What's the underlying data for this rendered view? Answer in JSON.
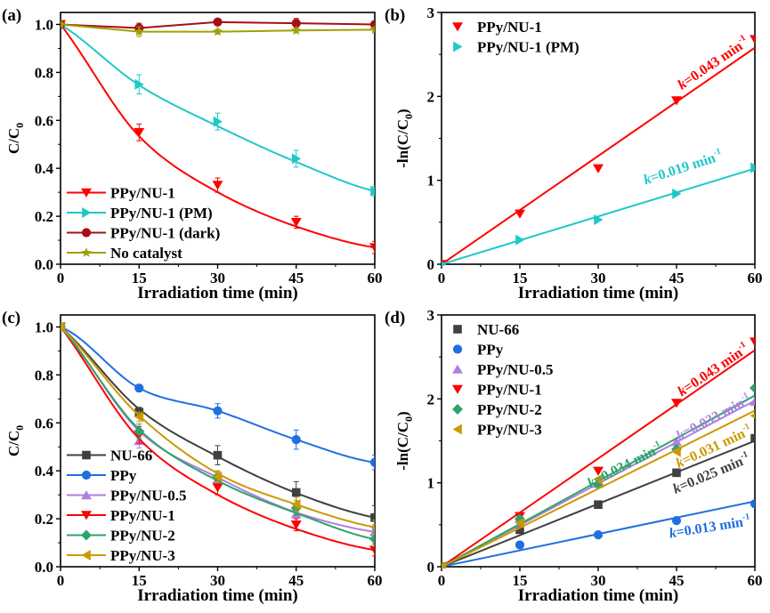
{
  "chart_data": [
    {
      "id": "a",
      "panel_label": "(a)",
      "type": "line",
      "xlabel": "Irradiation time (min)",
      "ylabel": "C/C",
      "ylabel_sub": "0",
      "xlim": [
        0,
        60
      ],
      "ylim": [
        0,
        1.05
      ],
      "xticks": [
        0,
        15,
        30,
        45,
        60
      ],
      "xtick_labels": [
        "0",
        "15",
        "30",
        "45",
        "60"
      ],
      "yticks": [
        0,
        0.2,
        0.4,
        0.6,
        0.8,
        1.0
      ],
      "ytick_labels": [
        "0.0",
        "0.2",
        "0.4",
        "0.6",
        "0.8",
        "1.0"
      ],
      "grid": false,
      "legend_position": "bottom-left",
      "legend_style": "line-marker",
      "x": [
        0,
        15,
        30,
        45,
        60
      ],
      "series": [
        {
          "name": "PPy/NU-1",
          "color": "#ff0000",
          "marker": "triangle-down",
          "values": [
            1.0,
            0.55,
            0.33,
            0.175,
            0.07
          ],
          "errors": [
            0.01,
            0.035,
            0.03,
            0.025,
            0.025
          ],
          "fit": "exp",
          "fit_k": 0.043
        },
        {
          "name": "PPy/NU-1 (PM)",
          "color": "#1ec8c8",
          "marker": "triangle-right",
          "values": [
            1.0,
            0.75,
            0.595,
            0.44,
            0.305
          ],
          "errors": [
            0.01,
            0.04,
            0.035,
            0.035,
            0.02
          ],
          "fit": "exp",
          "fit_k": 0.019
        },
        {
          "name": "PPy/NU-1 (dark)",
          "color": "#a50f15",
          "marker": "circle",
          "values": [
            1.0,
            0.985,
            1.01,
            1.005,
            1.0
          ],
          "errors": [
            0.01,
            0.02,
            0.01,
            0.02,
            0.01
          ],
          "fit": "linear"
        },
        {
          "name": "No catalyst",
          "color": "#a0a000",
          "marker": "star",
          "values": [
            1.0,
            0.97,
            0.97,
            0.975,
            0.978
          ],
          "errors": [
            0.01,
            0.02,
            0.01,
            0.01,
            0.01
          ],
          "fit": "linear"
        }
      ]
    },
    {
      "id": "b",
      "panel_label": "(b)",
      "type": "scatter",
      "xlabel": "Irradiation time (min)",
      "ylabel": "-ln(C/C",
      "ylabel_sub": "0",
      "ylabel_tail": ")",
      "xlim": [
        0,
        60
      ],
      "ylim": [
        0,
        3
      ],
      "xticks": [
        0,
        15,
        30,
        45,
        60
      ],
      "xtick_labels": [
        "0",
        "15",
        "30",
        "45",
        "60"
      ],
      "yticks": [
        0,
        1,
        2,
        3
      ],
      "ytick_labels": [
        "0",
        "1",
        "2",
        "3"
      ],
      "grid": false,
      "legend_position": "top-left",
      "legend_style": "marker-only",
      "x": [
        0,
        15,
        30,
        45,
        60
      ],
      "series": [
        {
          "name": "PPy/NU-1",
          "color": "#ff0000",
          "marker": "triangle-down",
          "values": [
            0.0,
            0.6,
            1.14,
            1.95,
            2.68
          ],
          "fit_k": 0.043,
          "annotation": {
            "k": "k",
            "text": "=0.043 min",
            "sup": "-1",
            "x": 52.5,
            "y": 2.35,
            "angle": -34
          }
        },
        {
          "name": "PPy/NU-1 (PM)",
          "color": "#1ec8c8",
          "marker": "triangle-right",
          "values": [
            0.0,
            0.29,
            0.53,
            0.84,
            1.15
          ],
          "fit_k": 0.019,
          "annotation": {
            "k": "k",
            "text": "=0.019 min",
            "sup": "-1",
            "x": 46.5,
            "y": 1.1,
            "angle": -18
          }
        }
      ]
    },
    {
      "id": "c",
      "panel_label": "(c)",
      "type": "line",
      "xlabel": "Irradiation time (min)",
      "ylabel": "C/C",
      "ylabel_sub": "0",
      "xlim": [
        0,
        60
      ],
      "ylim": [
        0,
        1.05
      ],
      "xticks": [
        0,
        15,
        30,
        45,
        60
      ],
      "xtick_labels": [
        "0",
        "15",
        "30",
        "45",
        "60"
      ],
      "yticks": [
        0,
        0.2,
        0.4,
        0.6,
        0.8,
        1.0
      ],
      "ytick_labels": [
        "0.0",
        "0.2",
        "0.4",
        "0.6",
        "0.8",
        "1.0"
      ],
      "grid": false,
      "legend_position": "bottom-left",
      "legend_style": "line-marker",
      "x": [
        0,
        15,
        30,
        45,
        60
      ],
      "series": [
        {
          "name": "NU-66",
          "color": "#404040",
          "marker": "square",
          "values": [
            1.0,
            0.645,
            0.465,
            0.31,
            0.205
          ],
          "errors": [
            0.01,
            0.02,
            0.04,
            0.045,
            0.05
          ],
          "fit": "exp",
          "fit_k": 0.025
        },
        {
          "name": "PPy",
          "color": "#1f6fe0",
          "marker": "circle",
          "values": [
            1.0,
            0.745,
            0.65,
            0.53,
            0.435
          ],
          "errors": [
            0.01,
            0.015,
            0.03,
            0.04,
            0.03
          ],
          "fit": "biexp",
          "fit_k": 0.013
        },
        {
          "name": "PPy/NU-0.5",
          "color": "#b27fe0",
          "marker": "triangle-up",
          "values": [
            1.0,
            0.525,
            0.365,
            0.22,
            0.145
          ],
          "errors": [
            0.01,
            0.03,
            0.03,
            0.03,
            0.03
          ],
          "fit": "exp",
          "fit_k": 0.033
        },
        {
          "name": "PPy/NU-1",
          "color": "#ff0000",
          "marker": "triangle-down",
          "values": [
            1.0,
            0.55,
            0.33,
            0.175,
            0.07
          ],
          "errors": [
            0.01,
            0.035,
            0.03,
            0.025,
            0.025
          ],
          "fit": "exp",
          "fit_k": 0.043
        },
        {
          "name": "PPy/NU-2",
          "color": "#2ea36b",
          "marker": "diamond",
          "values": [
            1.0,
            0.565,
            0.375,
            0.245,
            0.115
          ],
          "errors": [
            0.01,
            0.03,
            0.025,
            0.03,
            0.03
          ],
          "fit": "exp",
          "fit_k": 0.034
        },
        {
          "name": "PPy/NU-3",
          "color": "#cc9900",
          "marker": "triangle-left",
          "values": [
            1.0,
            0.625,
            0.375,
            0.26,
            0.165
          ],
          "errors": [
            0.01,
            0.02,
            0.025,
            0.03,
            0.03
          ],
          "fit": "exp",
          "fit_k": 0.031
        }
      ]
    },
    {
      "id": "d",
      "panel_label": "(d)",
      "type": "scatter",
      "xlabel": "Irradiation time (min)",
      "ylabel": "-ln(C/C",
      "ylabel_sub": "0",
      "ylabel_tail": ")",
      "xlim": [
        0,
        60
      ],
      "ylim": [
        0,
        3
      ],
      "xticks": [
        0,
        15,
        30,
        45,
        60
      ],
      "xtick_labels": [
        "0",
        "15",
        "30",
        "45",
        "60"
      ],
      "yticks": [
        0,
        1,
        2,
        3
      ],
      "ytick_labels": [
        "0",
        "1",
        "2",
        "3"
      ],
      "grid": false,
      "legend_position": "top-left",
      "legend_style": "marker-only",
      "x": [
        0,
        15,
        30,
        45,
        60
      ],
      "series": [
        {
          "name": "NU-66",
          "color": "#404040",
          "marker": "square",
          "values": [
            0.0,
            0.44,
            0.74,
            1.12,
            1.53
          ],
          "fit_k": 0.025,
          "annotation": {
            "k": "k",
            "text": "=0.025 min",
            "sup": "-1",
            "x": 52,
            "y": 1.06,
            "angle": -23
          }
        },
        {
          "name": "PPy",
          "color": "#1f6fe0",
          "marker": "circle",
          "values": [
            0.0,
            0.26,
            0.38,
            0.55,
            0.75
          ],
          "fit_k": 0.013,
          "annotation": {
            "k": "k",
            "text": "=0.013 min",
            "sup": "-1",
            "x": 51.5,
            "y": 0.42,
            "angle": -9
          }
        },
        {
          "name": "PPy/NU-0.5",
          "color": "#b27fe0",
          "marker": "triangle-up",
          "values": [
            0.0,
            0.58,
            0.99,
            1.49,
            1.97
          ],
          "fit_k": 0.033,
          "annotation": {
            "k": "k",
            "text": "=0.033 min",
            "sup": "-1",
            "x": 52.5,
            "y": 1.73,
            "angle": -28
          }
        },
        {
          "name": "PPy/NU-1",
          "color": "#ff0000",
          "marker": "triangle-down",
          "values": [
            0.0,
            0.6,
            1.14,
            1.95,
            2.68
          ],
          "fit_k": 0.043,
          "annotation": {
            "k": "k",
            "text": "=0.043 min",
            "sup": "-1",
            "x": 52.5,
            "y": 2.3,
            "angle": -34
          }
        },
        {
          "name": "PPy/NU-2",
          "color": "#2ea36b",
          "marker": "diamond",
          "values": [
            0.0,
            0.57,
            0.98,
            1.4,
            2.13
          ],
          "fit_k": 0.034,
          "annotation": {
            "k": "k",
            "text": "=0.034 min",
            "sup": "-1",
            "x": 35.5,
            "y": 1.16,
            "angle": -27
          }
        },
        {
          "name": "PPy/NU-3",
          "color": "#cc9900",
          "marker": "triangle-left",
          "values": [
            0.0,
            0.52,
            1.04,
            1.37,
            1.8
          ],
          "fit_k": 0.031,
          "annotation": {
            "k": "k",
            "text": "=0.031 min",
            "sup": "-1",
            "x": 52.5,
            "y": 1.38,
            "angle": -25
          }
        }
      ]
    }
  ]
}
